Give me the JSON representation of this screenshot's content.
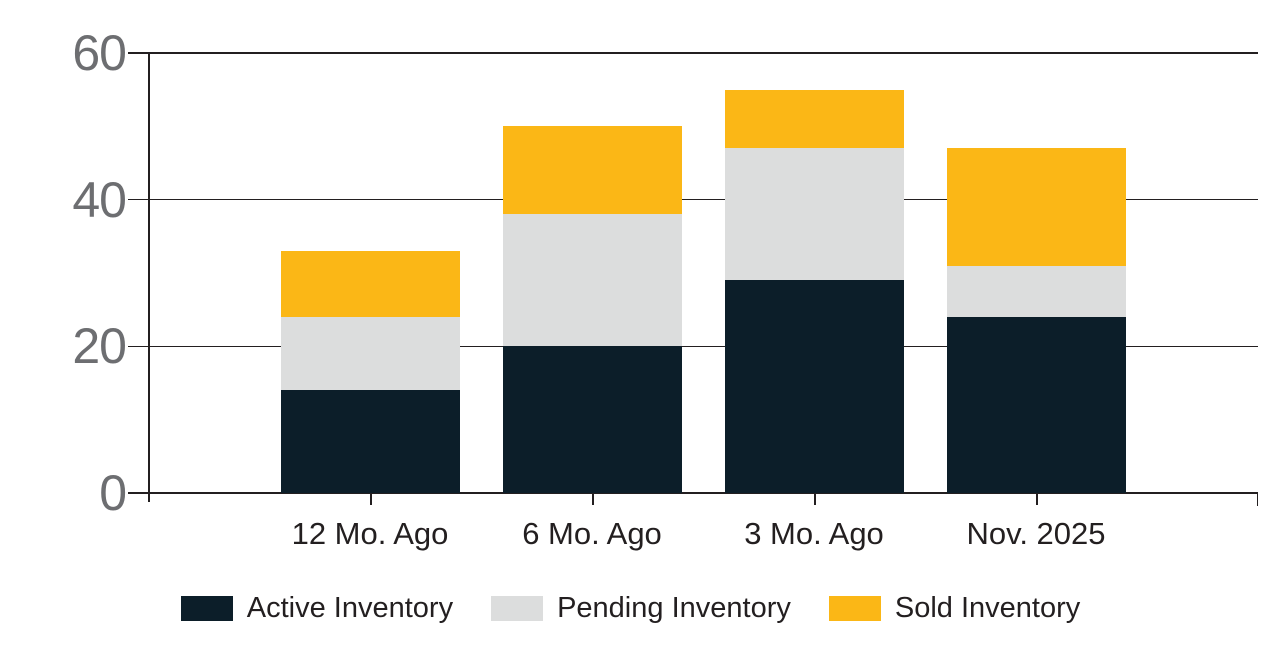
{
  "chart_data": {
    "type": "bar",
    "stacked": true,
    "title": "",
    "categories": [
      "12 Mo. Ago",
      "6 Mo. Ago",
      "3 Mo. Ago",
      "Nov. 2025"
    ],
    "series": [
      {
        "name": "Active Inventory",
        "color": "#0c1e29",
        "values": [
          14,
          20,
          29,
          24
        ]
      },
      {
        "name": "Pending Inventory",
        "color": "#dcdddd",
        "values": [
          10,
          18,
          18,
          7
        ]
      },
      {
        "name": "Sold Inventory",
        "color": "#fbb716",
        "values": [
          9,
          12,
          8,
          16
        ]
      }
    ],
    "stack_totals": [
      33,
      50,
      55,
      47
    ],
    "ylim": [
      0,
      60
    ],
    "yticks": [
      0,
      20,
      40,
      60
    ],
    "grid": "horizontal",
    "legend_position": "bottom"
  },
  "colors": {
    "background": "#ffffff",
    "gridline": "#231f20",
    "axis_line": "#231f20",
    "y_tick_label": "#6d6e71",
    "x_tick_label": "#231f20",
    "legend_text": "#231f20"
  }
}
